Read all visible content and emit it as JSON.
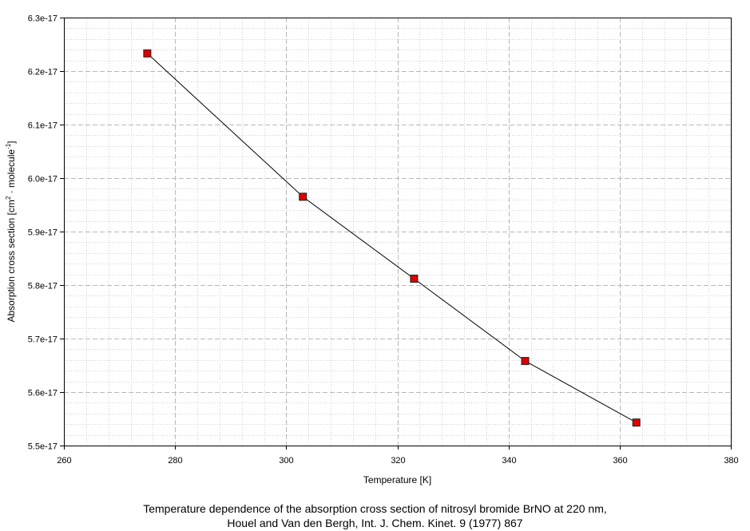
{
  "chart_data": {
    "type": "line",
    "xlabel": "Temperature [K]",
    "ylabel": "Absorption cross section [cm² · molecule⁻¹]",
    "ylabel_parts": {
      "prefix": "Absorption cross section [cm",
      "sup1": "2",
      "middle": " · molecule",
      "sup2": "-1",
      "suffix": "]"
    },
    "xlim": [
      260,
      380
    ],
    "ylim": [
      5.5e-17,
      6.3e-17
    ],
    "x_ticks": [
      260,
      280,
      300,
      320,
      340,
      360,
      380
    ],
    "x_tick_labels": [
      "260",
      "280",
      "300",
      "320",
      "340",
      "360",
      "380"
    ],
    "y_ticks": [
      5.5e-17,
      5.6e-17,
      5.7e-17,
      5.8e-17,
      5.9e-17,
      6e-17,
      6.1e-17,
      6.2e-17,
      6.3e-17
    ],
    "y_tick_labels": [
      "5.5e-17",
      "5.6e-17",
      "5.7e-17",
      "5.8e-17",
      "5.9e-17",
      "6.0e-17",
      "6.1e-17",
      "6.2e-17",
      "6.3e-17"
    ],
    "grid": true,
    "series": [
      {
        "x": [
          275,
          303,
          323,
          343,
          363
        ],
        "y": [
          6.233e-17,
          5.965e-17,
          5.812e-17,
          5.658e-17,
          5.543e-17
        ]
      }
    ],
    "line_color": "#000000",
    "marker_color": "#dd0000",
    "marker_border": "#222222"
  },
  "caption": {
    "line1": "Temperature dependence of the absorption cross section of nitrosyl bromide BrNO at 220 nm,",
    "line2": "Houel and Van den Bergh, Int. J. Chem. Kinet. 9 (1977) 867"
  }
}
